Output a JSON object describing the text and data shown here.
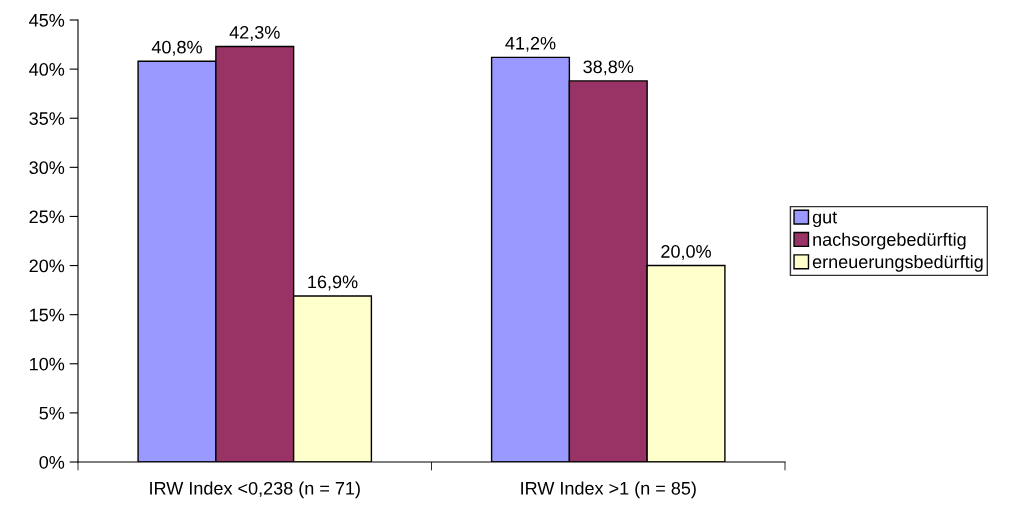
{
  "chart_data": {
    "type": "bar",
    "categories": [
      "IRW Index <0,238 (n = 71)",
      "IRW Index >1 (n = 85)"
    ],
    "series": [
      {
        "name": "gut",
        "color": "#9999ff",
        "values": [
          40.8,
          41.2
        ],
        "value_labels": [
          "40,8%",
          "41,2%"
        ]
      },
      {
        "name": "nachsorgebedürftig",
        "color": "#993366",
        "values": [
          42.3,
          38.8
        ],
        "value_labels": [
          "42,3%",
          "38,8%"
        ]
      },
      {
        "name": "erneuerungsbedürftig",
        "color": "#ffffcc",
        "values": [
          16.9,
          20.0
        ],
        "value_labels": [
          "16,9%",
          "20,0%"
        ]
      }
    ],
    "ylim": [
      0,
      45
    ],
    "yticks": [
      {
        "value": 0,
        "label": "0%"
      },
      {
        "value": 5,
        "label": "5%"
      },
      {
        "value": 10,
        "label": "10%"
      },
      {
        "value": 15,
        "label": "15%"
      },
      {
        "value": 20,
        "label": "20%"
      },
      {
        "value": 25,
        "label": "25%"
      },
      {
        "value": 30,
        "label": "30%"
      },
      {
        "value": 35,
        "label": "35%"
      },
      {
        "value": 40,
        "label": "40%"
      },
      {
        "value": 45,
        "label": "45%"
      }
    ],
    "grid": false,
    "legend": "right"
  }
}
